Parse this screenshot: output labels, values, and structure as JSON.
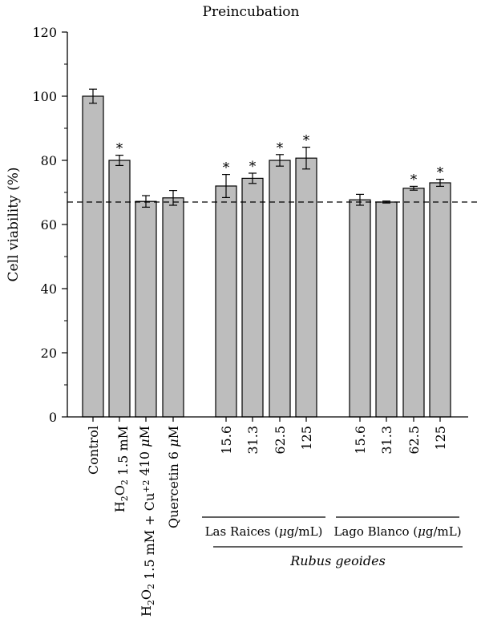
{
  "chart_data": {
    "type": "bar",
    "title": "Preincubation",
    "ylabel": "Cell viability (%)",
    "ylim": [
      0,
      120
    ],
    "yticks": [
      "0",
      "20",
      "40",
      "60",
      "80",
      "100",
      "120"
    ],
    "reference_line": {
      "value": 67,
      "style": "dashed"
    },
    "bar_color": "#bdbdbd",
    "categories": [
      {
        "label": "Control",
        "value": 100,
        "error": 2.2,
        "significant": false
      },
      {
        "label": "H2O2 1.5 mM",
        "value": 80,
        "error": 1.6,
        "significant": true
      },
      {
        "label": "H2O2 1.5 mM + Cu+2 410 μM",
        "value": 67.2,
        "error": 1.8,
        "significant": false
      },
      {
        "label": "Quercetin 6 μM",
        "value": 68.3,
        "error": 2.3,
        "significant": false
      },
      {
        "label": "15.6",
        "value": 72,
        "error": 3.6,
        "significant": true
      },
      {
        "label": "31.3",
        "value": 74.4,
        "error": 1.6,
        "significant": true
      },
      {
        "label": "62.5",
        "value": 80,
        "error": 1.8,
        "significant": true
      },
      {
        "label": "125",
        "value": 80.7,
        "error": 3.4,
        "significant": true
      },
      {
        "label": "15.6",
        "value": 67.7,
        "error": 1.7,
        "significant": false
      },
      {
        "label": "31.3",
        "value": 67,
        "error": 0.3,
        "significant": false
      },
      {
        "label": "62.5",
        "value": 71.3,
        "error": 0.6,
        "significant": true
      },
      {
        "label": "125",
        "value": 73,
        "error": 1.1,
        "significant": true
      }
    ],
    "significance_marker": "*",
    "groups": [
      {
        "label": "Las Raices (μg/mL)",
        "start": 4,
        "end": 7
      },
      {
        "label": "Lago Blanco (μg/mL)",
        "start": 8,
        "end": 11
      }
    ],
    "supergroup": {
      "label": "Rubus geoides",
      "start": 4,
      "end": 11
    }
  }
}
